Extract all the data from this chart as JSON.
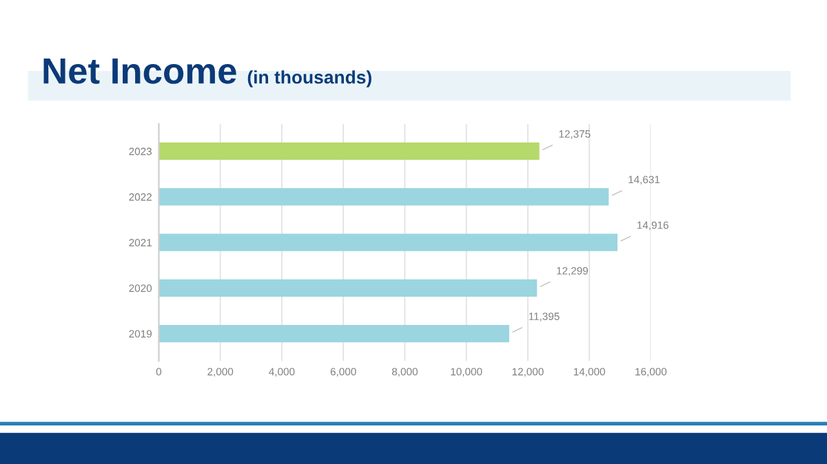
{
  "chart_data": {
    "type": "bar",
    "orientation": "horizontal",
    "title": "Net Income",
    "subtitle": "(in thousands)",
    "categories": [
      "2023",
      "2022",
      "2021",
      "2020",
      "2019"
    ],
    "values": [
      12375,
      14631,
      14916,
      12299,
      11395
    ],
    "colors": [
      "#b5d96b",
      "#9ad5e0",
      "#9ad5e0",
      "#9ad5e0",
      "#9ad5e0"
    ],
    "value_labels": [
      "12,375",
      "14,631",
      "14,916",
      "12,299",
      "11,395"
    ],
    "xlim": [
      0,
      16000
    ],
    "xticks": [
      0,
      {
        "value": 2000,
        "label": "2,000"
      },
      {
        "value": 4000,
        "label": "4,000"
      },
      {
        "value": 6000,
        "label": "6,000"
      },
      {
        "value": 8000,
        "label": "8,000"
      },
      {
        "value": 10000,
        "label": "10,000"
      },
      {
        "value": 12000,
        "label": "12,000"
      },
      {
        "value": 14000,
        "label": "14,000"
      },
      {
        "value": 16000,
        "label": "16,000"
      }
    ],
    "grid": "x"
  }
}
